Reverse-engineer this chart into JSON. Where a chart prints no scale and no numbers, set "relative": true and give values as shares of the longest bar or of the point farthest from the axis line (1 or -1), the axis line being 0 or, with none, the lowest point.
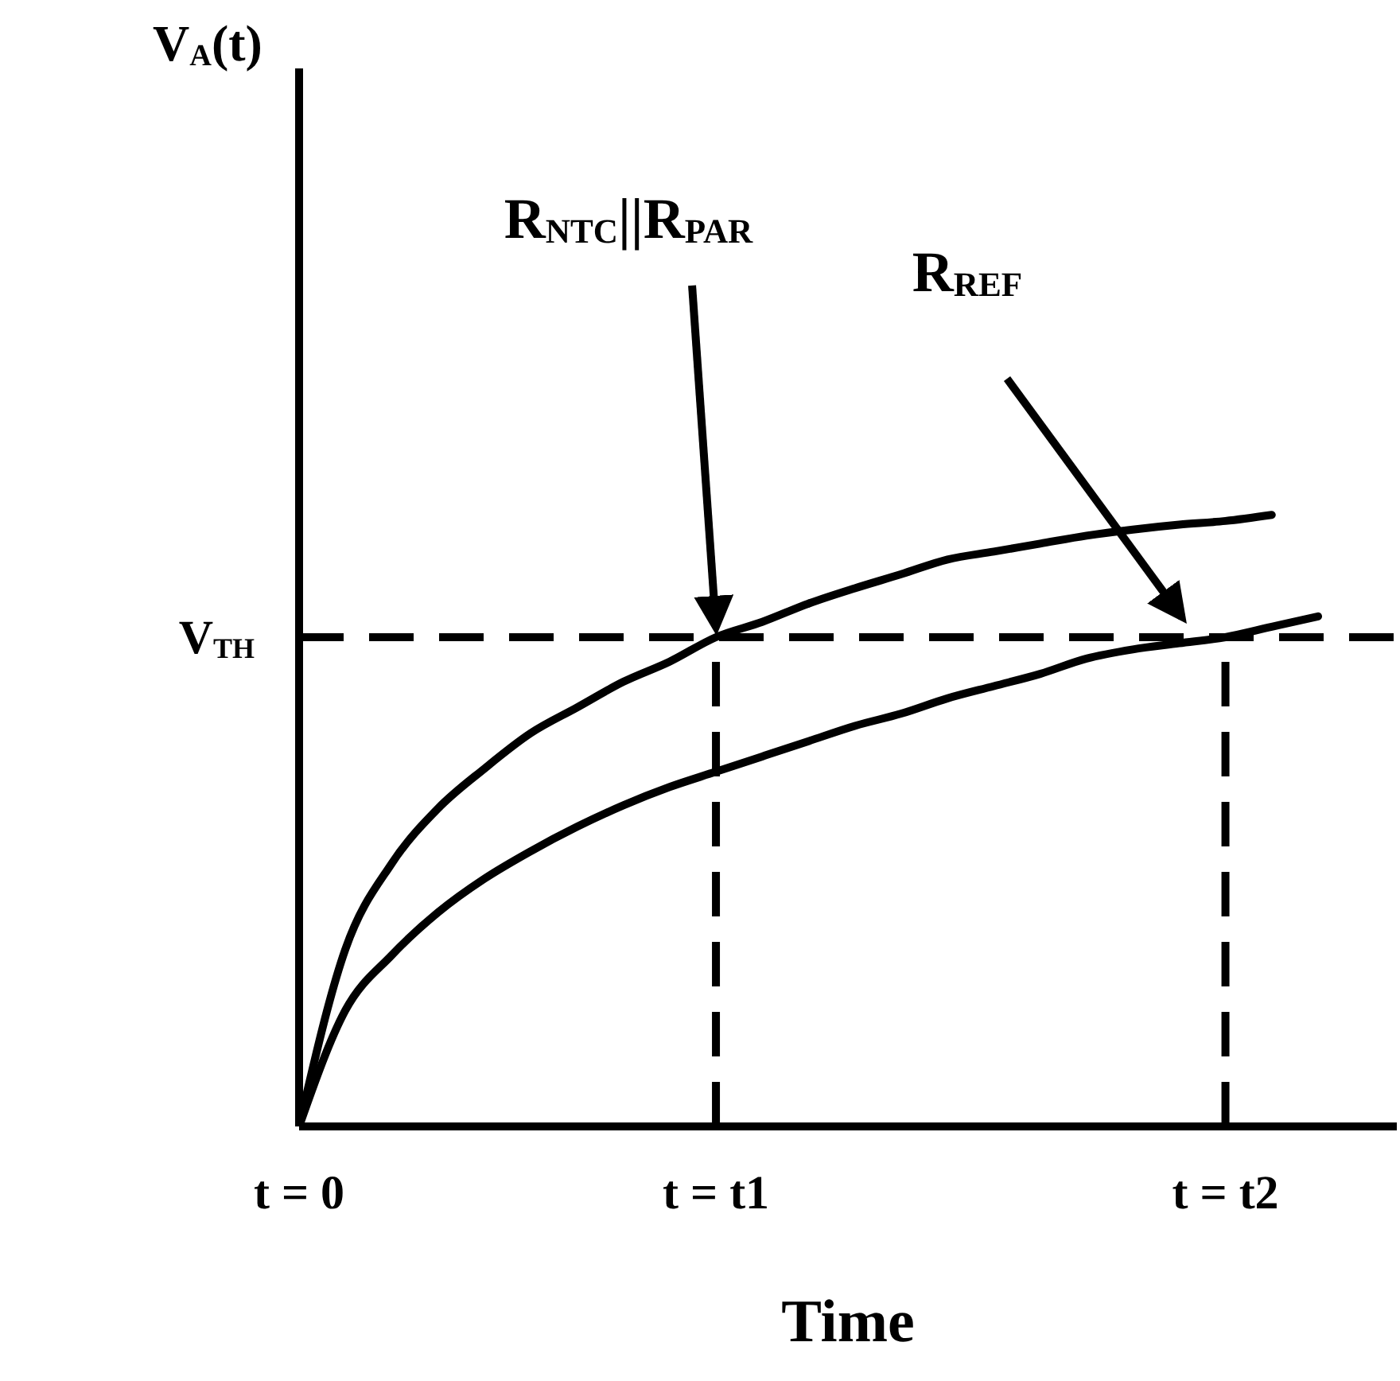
{
  "chart_data": {
    "type": "line",
    "relative": true,
    "marker": "none",
    "xlabel": "Time",
    "categories": [
      "t = 0",
      null,
      null,
      null,
      null,
      null,
      null,
      null,
      null,
      "t = t1",
      null,
      null,
      null,
      null,
      null,
      null,
      null,
      null,
      null,
      null,
      "t = t2",
      null,
      null
    ],
    "series": [
      {
        "color": "#000000",
        "values": [
          0,
          0.29,
          0.43,
          0.52,
          0.585,
          0.643,
          0.685,
          0.727,
          0.76,
          0.8,
          0.825,
          0.855,
          0.88,
          0.903,
          0.927,
          0.94,
          0.953,
          0.966,
          0.976,
          0.984,
          0.99,
          1,
          null
        ]
      },
      {
        "color": "#000000",
        "values": [
          0,
          0.19,
          0.28,
          0.35,
          0.405,
          0.45,
          0.49,
          0.525,
          0.555,
          0.58,
          0.605,
          0.63,
          0.655,
          0.675,
          0.7,
          0.72,
          0.74,
          0.765,
          0.78,
          0.79,
          0.8,
          0.817,
          0.834
        ]
      }
    ],
    "ref_lines": [
      {
        "axis": "y",
        "value": 0.8,
        "label": "V$_{TH}$",
        "line_style": "dashed"
      },
      {
        "axis": "x",
        "value": "t = t1",
        "line_style": "dashed"
      },
      {
        "axis": "x",
        "value": "t = t2",
        "line_style": "dashed"
      }
    ],
    "annotations": [
      "V$_{A}$(t)",
      {
        "text": "R$_{NTC}$||R$_{PAR}$",
        "x": "t = t1",
        "y": 0.8
      },
      "R$_{REF}$"
    ]
  }
}
